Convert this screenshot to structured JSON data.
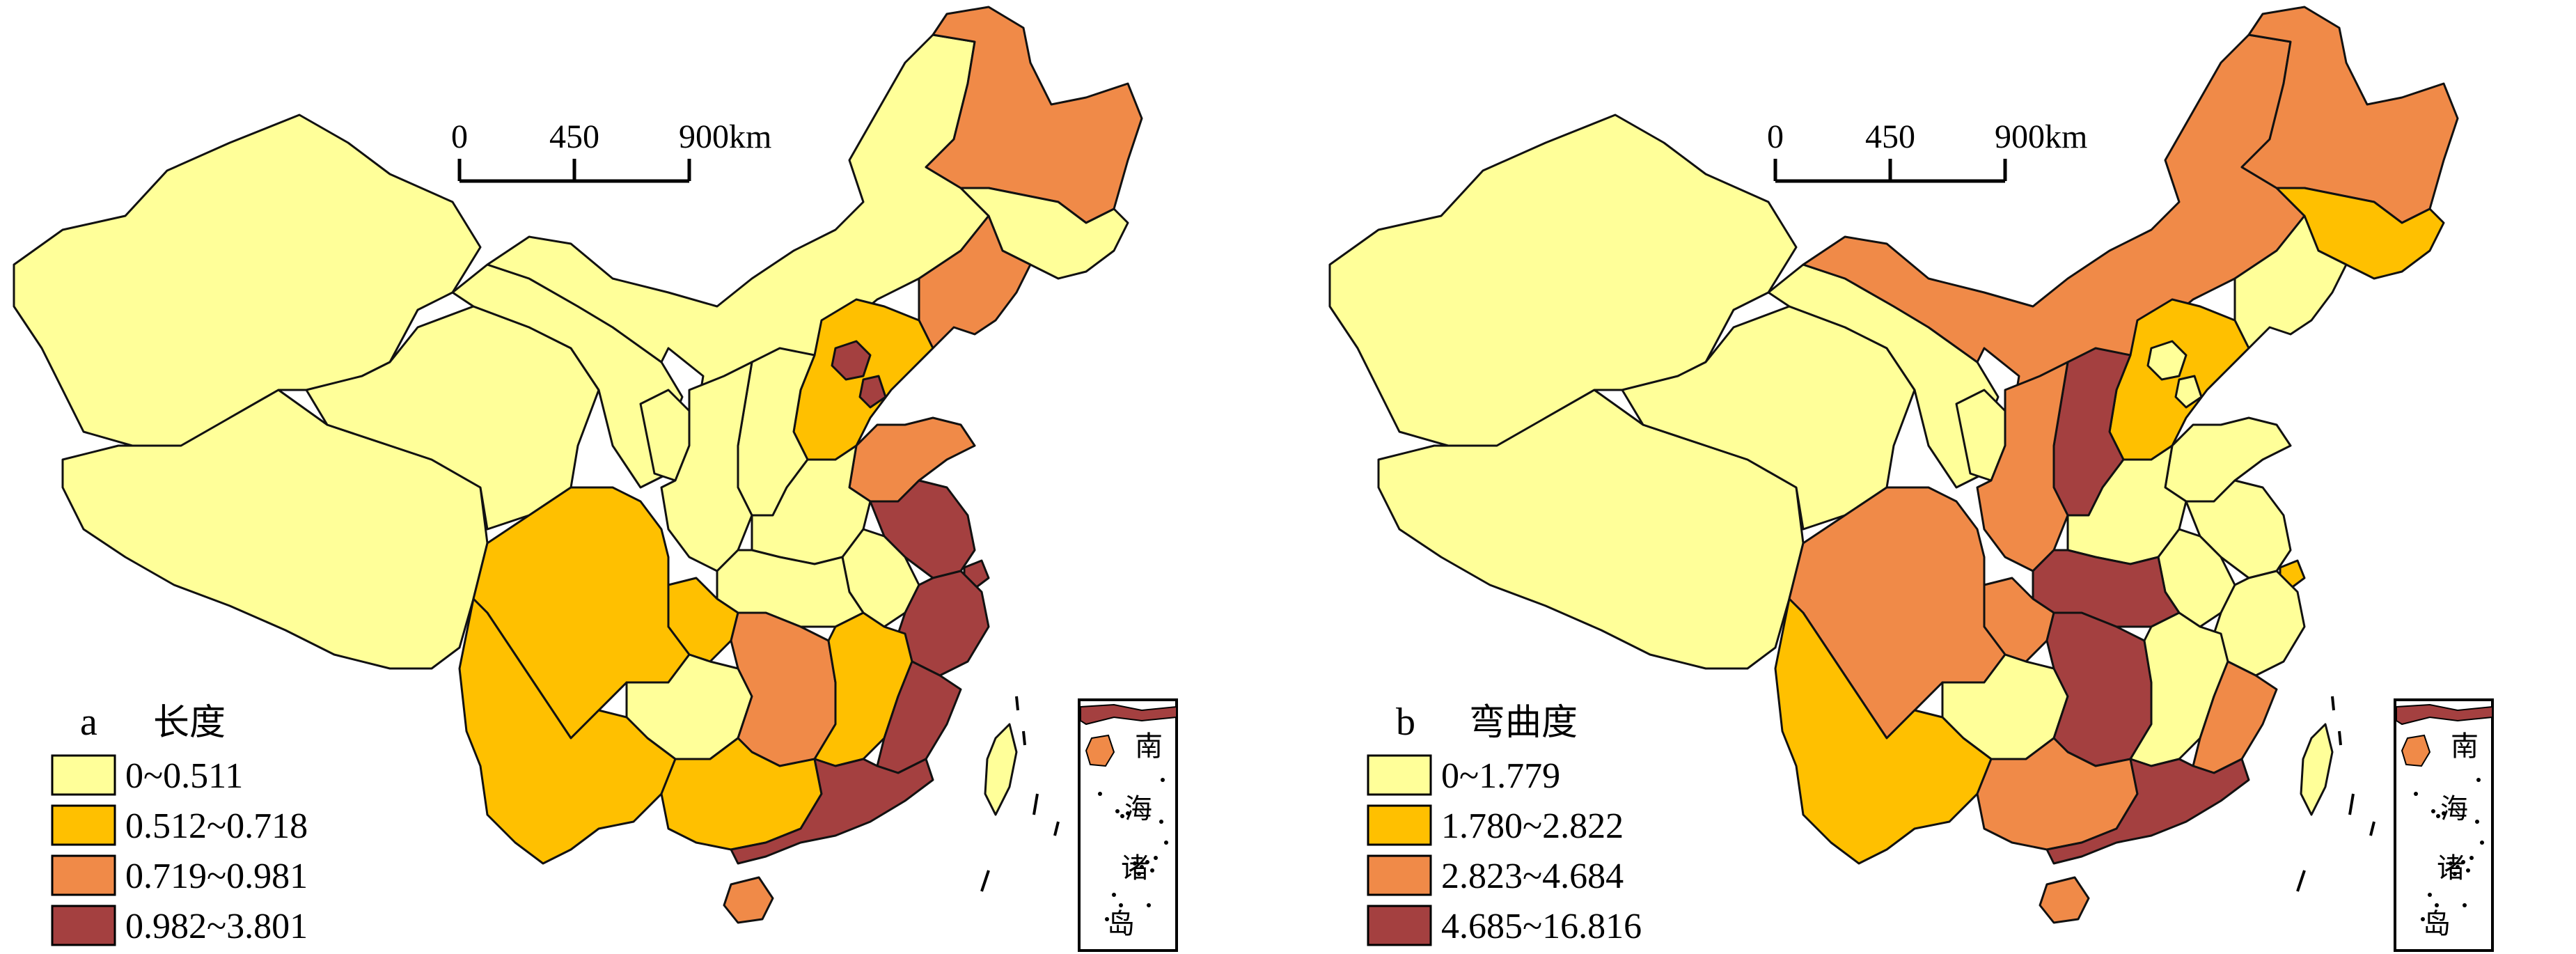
{
  "colors": {
    "class1": "#ffff99",
    "class2": "#ffc000",
    "class3": "#f08a48",
    "class4": "#a44040",
    "border": "#111111",
    "background": "#ffffff"
  },
  "scalebar": {
    "ticks": [
      "0",
      "450",
      "900km"
    ]
  },
  "inset": {
    "chars": [
      "南",
      "海",
      "诸",
      "岛"
    ]
  },
  "maps": [
    {
      "panel_letter": "a",
      "title": "长度",
      "legend": [
        {
          "class": "class1",
          "label": "0~0.511"
        },
        {
          "class": "class2",
          "label": "0.512~0.718"
        },
        {
          "class": "class3",
          "label": "0.719~0.981"
        },
        {
          "class": "class4",
          "label": "0.982~3.801"
        }
      ],
      "regions": {
        "xinjiang": "class1",
        "tibet": "class1",
        "qinghai": "class1",
        "gansu": "class1",
        "neimenggu": "class1",
        "ningxia": "class1",
        "shaanxi": "class1",
        "shanxi": "class1",
        "henan": "class1",
        "hubei": "class1",
        "anhui": "class1",
        "heilongjiang": "class3",
        "jilin": "class1",
        "liaoning": "class3",
        "hebei": "class2",
        "beijing": "class4",
        "tianjin": "class4",
        "shandong": "class3",
        "jiangsu": "class4",
        "shanghai": "class4",
        "zhejiang": "class4",
        "fujian": "class4",
        "guangdong": "class4",
        "hainan": "class3",
        "jiangxi": "class2",
        "hunan": "class3",
        "guangxi": "class2",
        "guizhou": "class1",
        "yunnan": "class2",
        "sichuan": "class2",
        "chongqing": "class2",
        "taiwan": "class1"
      }
    },
    {
      "panel_letter": "b",
      "title": "弯曲度",
      "legend": [
        {
          "class": "class1",
          "label": "0~1.779"
        },
        {
          "class": "class2",
          "label": "1.780~2.822"
        },
        {
          "class": "class3",
          "label": "2.823~4.684"
        },
        {
          "class": "class4",
          "label": "4.685~16.816"
        }
      ],
      "regions": {
        "xinjiang": "class1",
        "tibet": "class1",
        "qinghai": "class1",
        "gansu": "class1",
        "neimenggu": "class3",
        "ningxia": "class1",
        "shaanxi": "class3",
        "shanxi": "class4",
        "henan": "class1",
        "hubei": "class4",
        "anhui": "class1",
        "heilongjiang": "class3",
        "jilin": "class2",
        "liaoning": "class1",
        "hebei": "class2",
        "beijing": "class1",
        "tianjin": "class1",
        "shandong": "class1",
        "jiangsu": "class1",
        "shanghai": "class2",
        "zhejiang": "class1",
        "fujian": "class3",
        "guangdong": "class4",
        "hainan": "class3",
        "jiangxi": "class1",
        "hunan": "class4",
        "guangxi": "class3",
        "guizhou": "class1",
        "yunnan": "class2",
        "sichuan": "class3",
        "chongqing": "class3",
        "taiwan": "class1"
      }
    }
  ]
}
